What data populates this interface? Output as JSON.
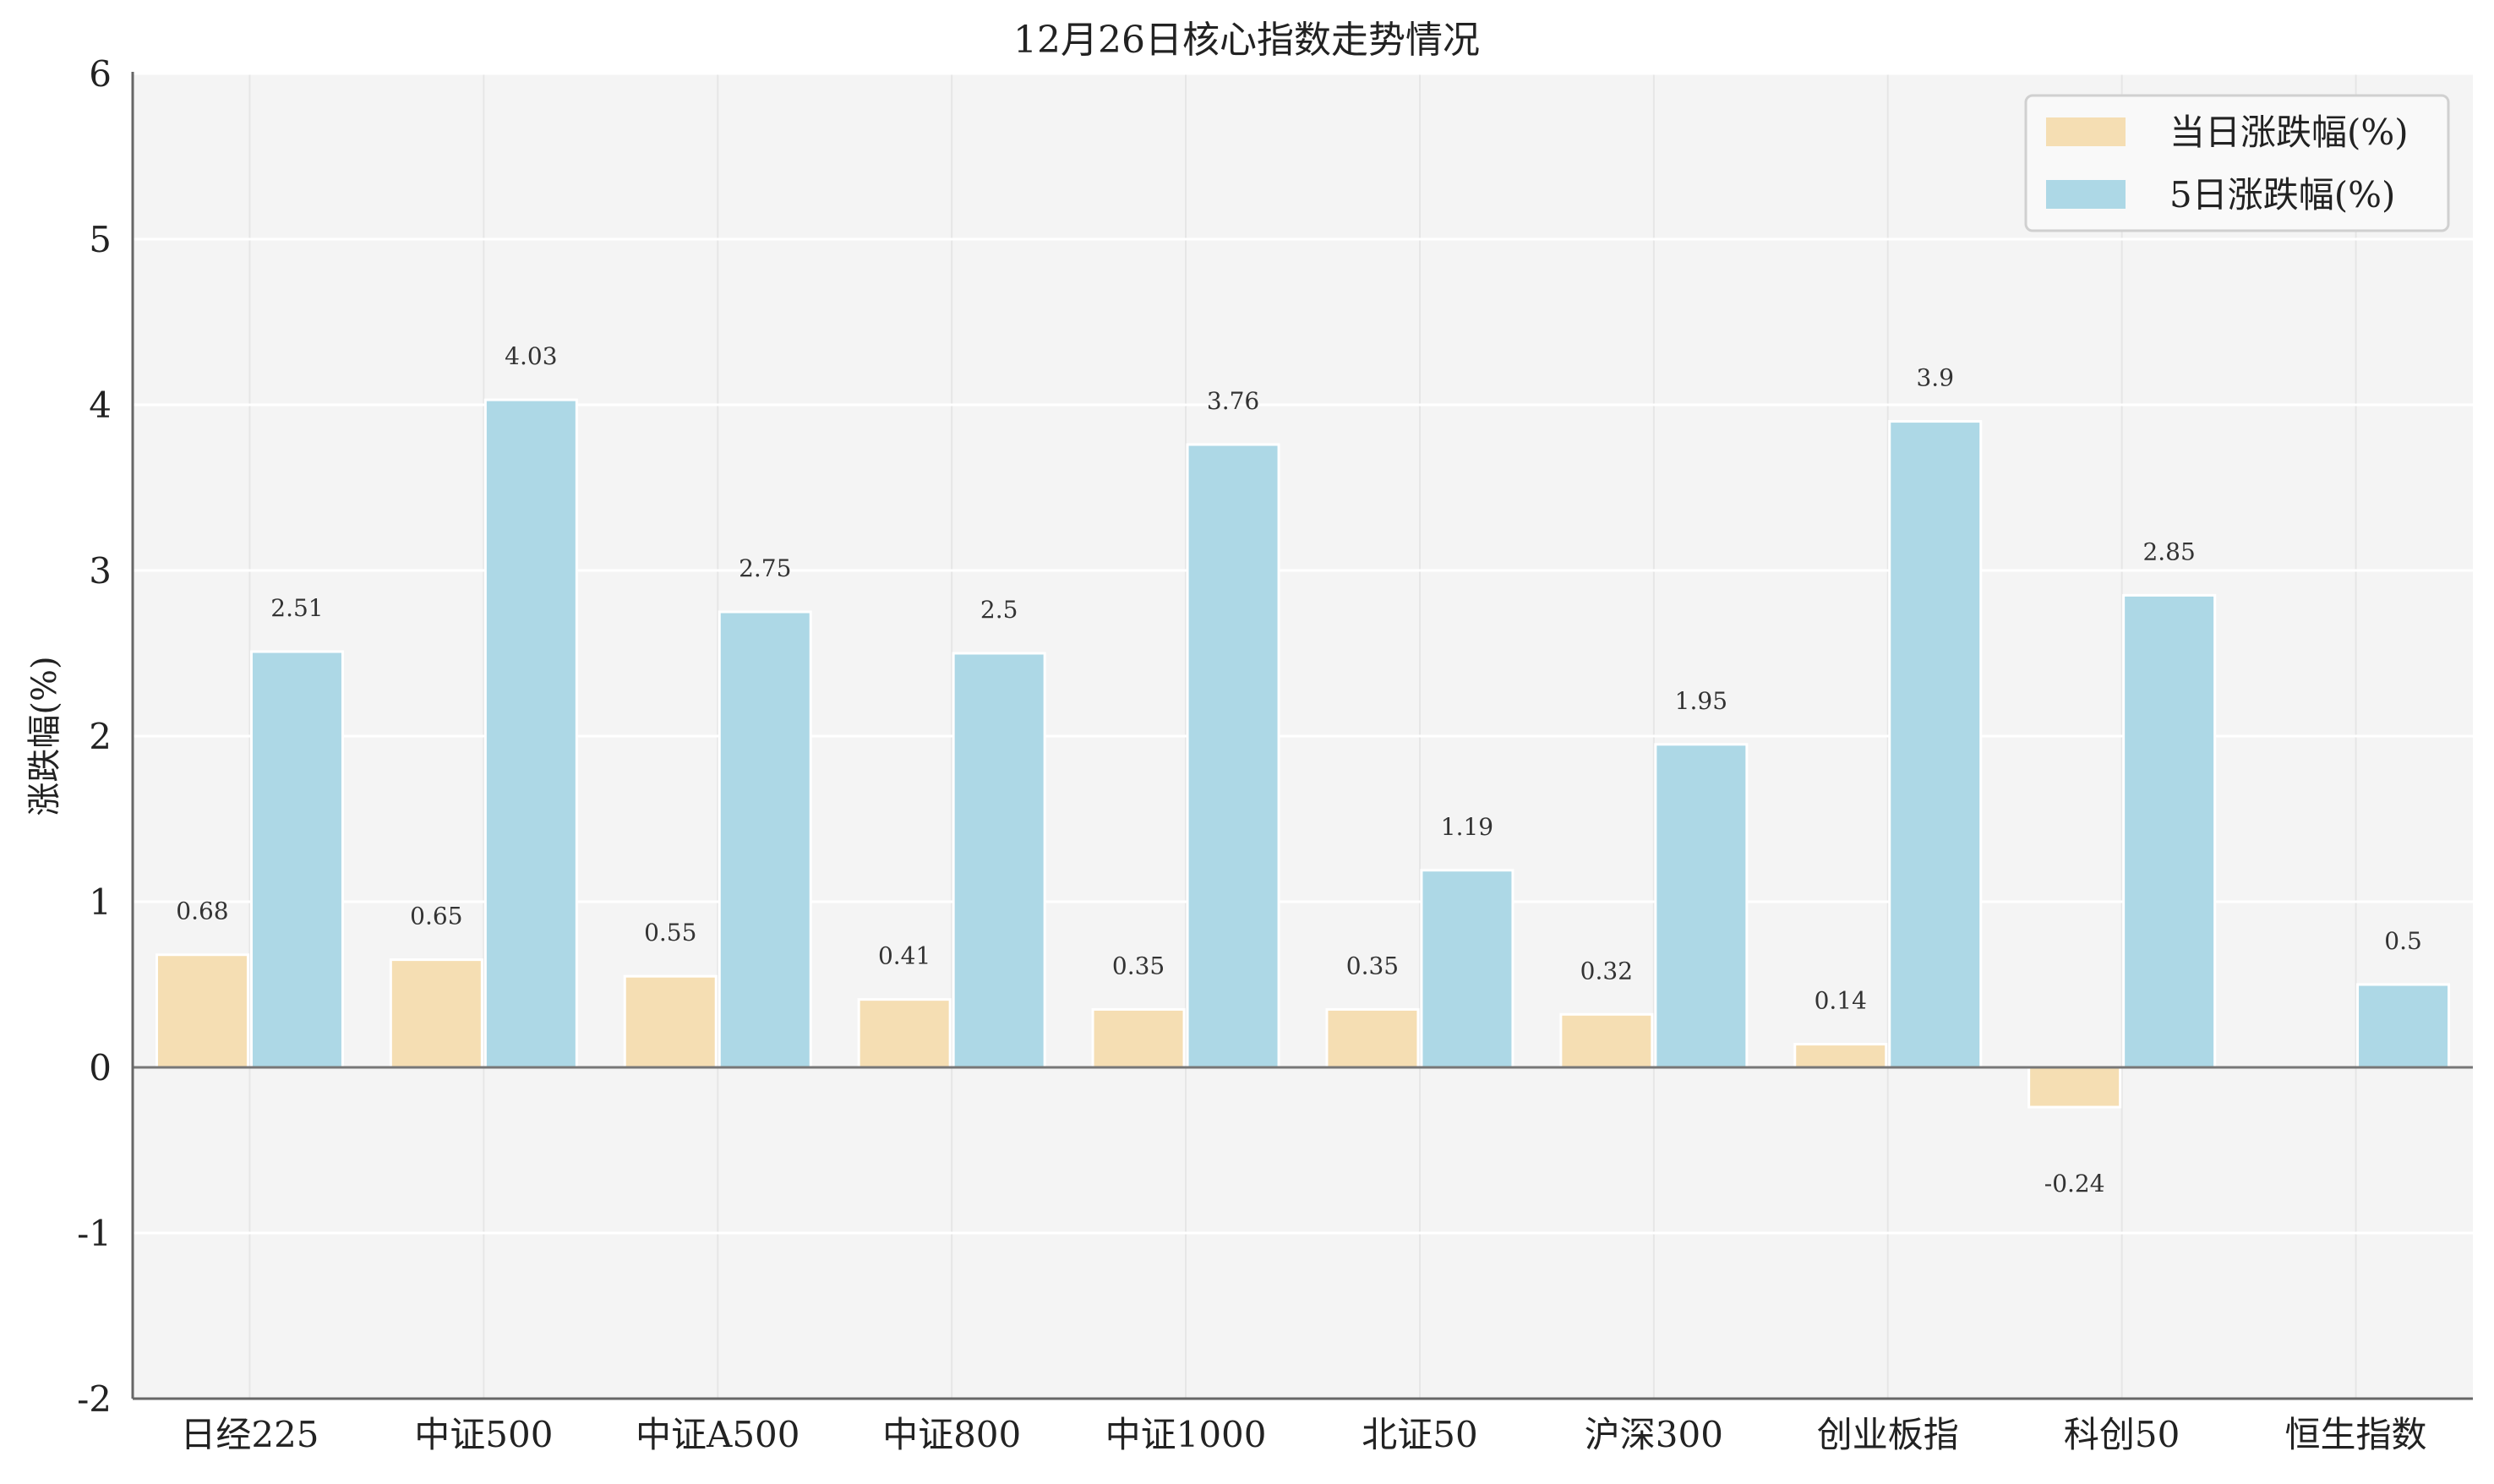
{
  "chart_data": {
    "type": "bar",
    "title": "12月26日核心指数走势情况",
    "xlabel": "",
    "ylabel": "涨跌幅(%)",
    "ylim": [
      -2,
      6
    ],
    "yticks": [
      "-2",
      "-1",
      "0",
      "1",
      "2",
      "3",
      "4",
      "5",
      "6"
    ],
    "grid": true,
    "legend_position": "top-right",
    "categories": [
      "日经225",
      "中证500",
      "中证A500",
      "中证800",
      "中证1000",
      "北证50",
      "沪深300",
      "创业板指",
      "科创50",
      "恒生指数"
    ],
    "series": [
      {
        "name": "当日涨跌幅(%)",
        "color": "#F5DEB3",
        "values": [
          0.68,
          0.65,
          0.55,
          0.41,
          0.35,
          0.35,
          0.32,
          0.14,
          -0.24,
          null
        ],
        "labels": [
          "0.68",
          "0.65",
          "0.55",
          "0.41",
          "0.35",
          "0.35",
          "0.32",
          "0.14",
          "-0.24",
          ""
        ]
      },
      {
        "name": "5日涨跌幅(%)",
        "color": "#ADD8E6",
        "values": [
          2.51,
          4.03,
          2.75,
          2.5,
          3.76,
          1.19,
          1.95,
          3.9,
          2.85,
          0.5
        ],
        "labels": [
          "2.51",
          "4.03",
          "2.75",
          "2.5",
          "3.76",
          "1.19",
          "1.95",
          "3.9",
          "2.85",
          "0.5"
        ]
      }
    ]
  },
  "colors": {
    "plot_background": "#F4F4F4",
    "grid": "#FFFFFF",
    "axis": "#666666",
    "zero_line": "#777777"
  }
}
